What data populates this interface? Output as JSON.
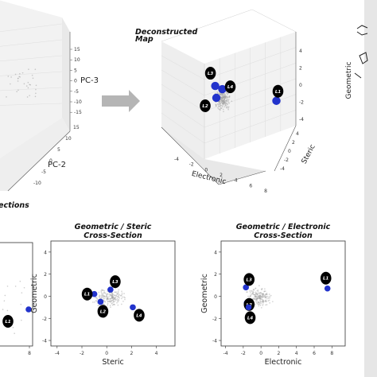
{
  "chart_data": [
    {
      "type": "scatter",
      "panel": "3d-pca-partial",
      "zlabel": "PC-3",
      "ylabel": "PC-2",
      "z_ticks": [
        "15",
        "10",
        "5",
        "0",
        "-5",
        "-10",
        "-15"
      ],
      "y_ticks": [
        "15",
        "10",
        "5",
        "0",
        "-5",
        "-10"
      ]
    },
    {
      "type": "scatter",
      "panel": "deconstructed-map-3d",
      "title_lines": [
        "Deconstructed",
        "Map"
      ],
      "xlabel": "Electronic",
      "ylabel": "Steric",
      "zlabel": "Geometric",
      "x_ticks": [
        "-4",
        "-2",
        "0",
        "2",
        "4",
        "6",
        "8"
      ],
      "y_ticks": [
        "-4",
        "-2",
        "0",
        "2",
        "4"
      ],
      "z_ticks": [
        "4",
        "2",
        "0",
        "-2",
        "-4"
      ],
      "ligands": [
        {
          "label": "L3",
          "electronic": -1.8,
          "steric": 1.2,
          "geometric": 1.6
        },
        {
          "label": "L4",
          "electronic": -0.5,
          "steric": 0.5,
          "geometric": 1.2
        },
        {
          "label": "L2",
          "electronic": -1.2,
          "steric": 0.2,
          "geometric": 0.1
        },
        {
          "label": "L1",
          "electronic": 7.5,
          "steric": -0.5,
          "geometric": 0.5
        }
      ]
    },
    {
      "type": "scatter",
      "panel": "cross-section-partial",
      "title_fragment": "ections",
      "x_ticks": [
        "8"
      ],
      "ligands": [
        {
          "label": "L1",
          "x": 7.8,
          "y": 0.7
        }
      ]
    },
    {
      "type": "scatter",
      "panel": "geometric-steric",
      "title_lines": [
        "Geometric / Steric",
        "Cross-Section"
      ],
      "xlabel": "Steric",
      "ylabel": "Geometric",
      "xlim": [
        -4.5,
        5.5
      ],
      "ylim": [
        -4.5,
        5
      ],
      "x_ticks": [
        -4,
        -2,
        0,
        2,
        4
      ],
      "y_ticks": [
        4,
        2,
        0,
        -2,
        -4
      ],
      "ligands": [
        {
          "label": "L1",
          "x": -1.0,
          "y": 0.2
        },
        {
          "label": "L3",
          "x": 0.3,
          "y": 0.6
        },
        {
          "label": "L2",
          "x": -0.5,
          "y": -0.5
        },
        {
          "label": "L4",
          "x": 2.1,
          "y": -1.0
        }
      ]
    },
    {
      "type": "scatter",
      "panel": "geometric-electronic",
      "title_lines": [
        "Geometric / Electronic",
        "Cross-Section"
      ],
      "xlabel": "Electronic",
      "ylabel": "Geometric",
      "xlim": [
        -4.5,
        9.5
      ],
      "ylim": [
        -4.5,
        5
      ],
      "x_ticks": [
        -4,
        -2,
        0,
        2,
        4,
        6,
        8
      ],
      "y_ticks": [
        4,
        2,
        0,
        -2,
        -4
      ],
      "ligands": [
        {
          "label": "L3",
          "x": -1.7,
          "y": 0.8
        },
        {
          "label": "L1",
          "x": 7.5,
          "y": 0.7
        },
        {
          "label": "L2",
          "x": -1.6,
          "y": -0.6
        },
        {
          "label": "L4",
          "x": -1.4,
          "y": -1.0
        }
      ]
    }
  ],
  "colors": {
    "ligand_point": "#2233cc",
    "ligand_label_bg": "#000000",
    "cloud": "#9a9a9a",
    "pane": "#f2f2f2",
    "arrow": "#b5b5b5",
    "side_bar": "#e6e6e6"
  }
}
